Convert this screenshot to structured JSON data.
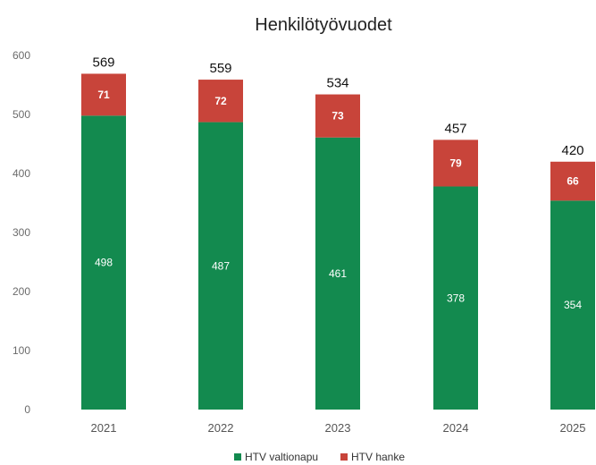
{
  "chart_data": {
    "type": "bar",
    "stacked": true,
    "title": "Henkilötyövuodet",
    "categories": [
      "2021",
      "2022",
      "2023",
      "2024",
      "2025"
    ],
    "series": [
      {
        "name": "HTV valtionapu",
        "color": "#138a4f",
        "values": [
          498,
          487,
          461,
          378,
          354
        ]
      },
      {
        "name": "HTV hanke",
        "color": "#c8443a",
        "values": [
          71,
          72,
          73,
          79,
          66
        ]
      }
    ],
    "totals": [
      569,
      559,
      534,
      457,
      420
    ],
    "yticks": [
      0,
      100,
      200,
      300,
      400,
      500,
      600
    ],
    "ylim": [
      0,
      600
    ],
    "grid": false,
    "legend_position": "bottom"
  }
}
